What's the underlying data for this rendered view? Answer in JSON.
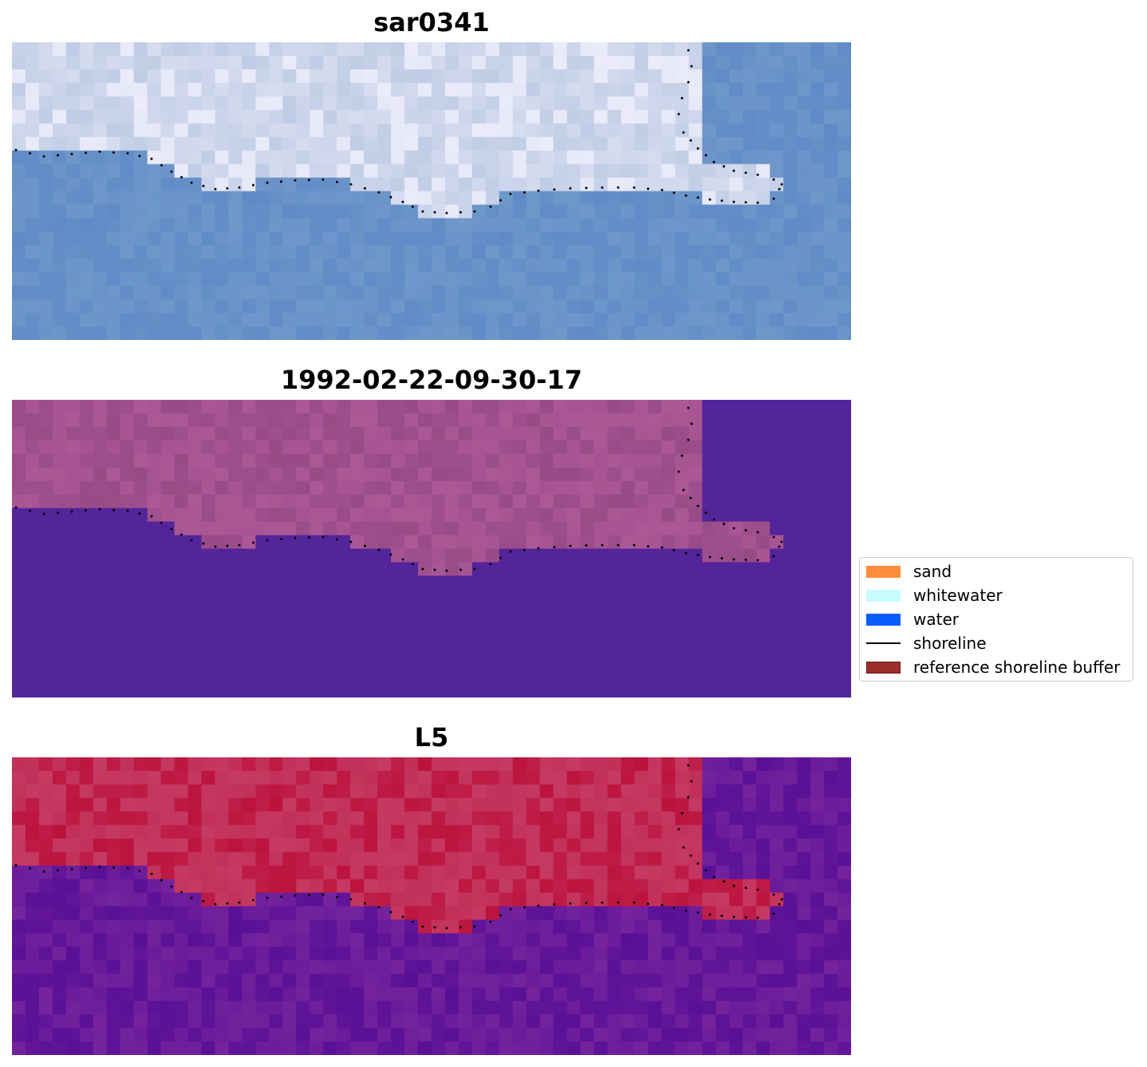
{
  "panels": [
    {
      "title": "sar0341",
      "kind": "rgb"
    },
    {
      "title": "1992-02-22-09-30-17",
      "kind": "classification"
    },
    {
      "title": "L5",
      "kind": "index"
    }
  ],
  "legend": {
    "items": [
      {
        "label": "sand",
        "color": "#ff8c3a",
        "type": "patch"
      },
      {
        "label": "whitewater",
        "color": "#c8fcff",
        "type": "patch"
      },
      {
        "label": "water",
        "color": "#0a5cff",
        "type": "patch"
      },
      {
        "label": "shoreline",
        "color": "#000000",
        "type": "line"
      },
      {
        "label": "reference shoreline buffer",
        "color": "#9b2d2b",
        "type": "patch"
      }
    ]
  },
  "colors": {
    "rgb_water": "#6a93c8",
    "rgb_land": "#d6dcef",
    "class_water": "#53249a",
    "class_land": "#a65393",
    "index_land": "#c2305a",
    "index_water": "#6b1a9a",
    "shoreline_dots": "#000000"
  }
}
